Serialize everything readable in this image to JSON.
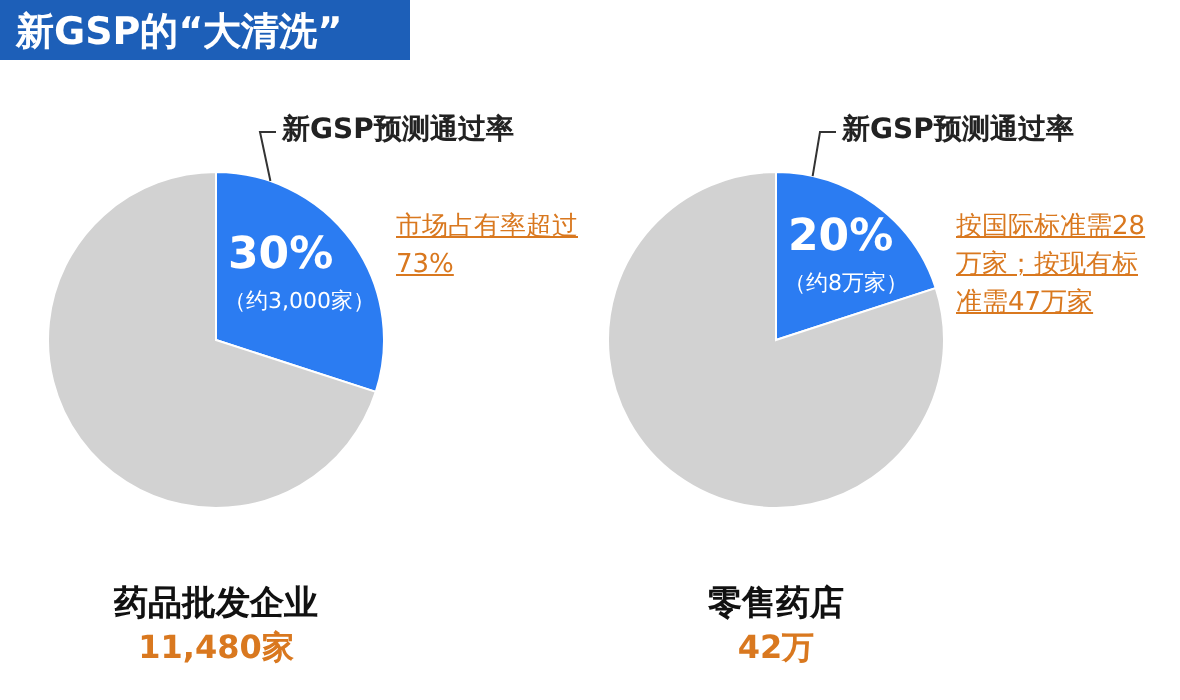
{
  "chart_data": [
    {
      "type": "pie",
      "title": "新GSP的“大清洗”",
      "categories": [
        "新GSP预测通过率",
        null
      ],
      "values": [
        30,
        70
      ],
      "colors": [
        "#2b7cf2",
        "#d2d2d2"
      ],
      "value_labels": [
        "30%",
        null
      ],
      "xlabel": "药品批发企业",
      "annotations": [
        "（约3,000家）",
        "市场占有率超过73%",
        "11,480家"
      ]
    },
    {
      "type": "pie",
      "categories": [
        "新GSP预测通过率",
        null
      ],
      "values": [
        20,
        80
      ],
      "colors": [
        "#2b7cf2",
        "#d2d2d2"
      ],
      "value_labels": [
        "20%",
        null
      ],
      "xlabel": "零售药店",
      "annotations": [
        "（约8万家）",
        "按国际标准需28万家；按现有标准需47万家",
        "42万"
      ]
    }
  ]
}
